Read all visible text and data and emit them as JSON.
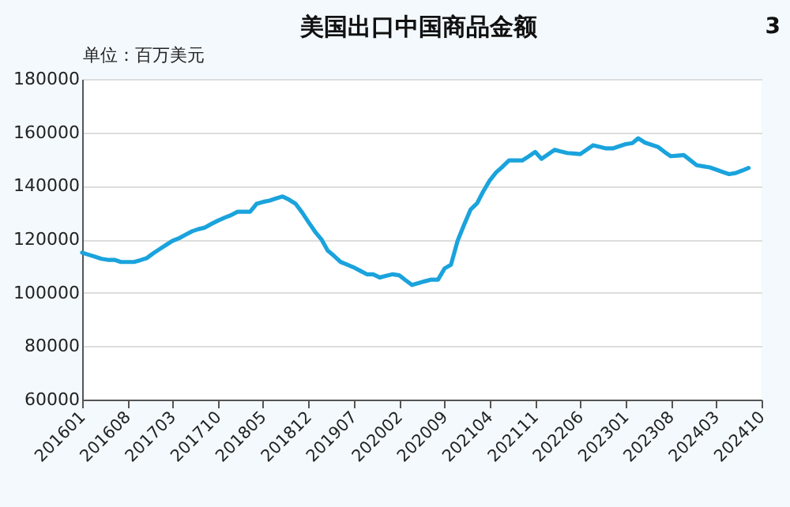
{
  "chart_data": {
    "type": "line",
    "title": "美国出口中国商品金额",
    "ylabel": "单位：百万美元",
    "annotations": [
      "3"
    ],
    "x": [
      "2016-01",
      "2016-02",
      "2016-03",
      "2016-04",
      "2016-05",
      "2016-06",
      "2016-07",
      "2016-08",
      "2016-09",
      "2016-10",
      "2016-11",
      "2016-12",
      "2017-01",
      "2017-02",
      "2017-03",
      "2017-04",
      "2017-05",
      "2017-06",
      "2017-07",
      "2017-08",
      "2017-09",
      "2017-10",
      "2017-11",
      "2017-12",
      "2018-01",
      "2018-02",
      "2018-03",
      "2018-04",
      "2018-05",
      "2018-06",
      "2018-07",
      "2018-08",
      "2018-09",
      "2018-10",
      "2018-11",
      "2018-12",
      "2019-01",
      "2019-02",
      "2019-03",
      "2019-04",
      "2019-05",
      "2019-06",
      "2019-07",
      "2019-08",
      "2019-09",
      "2019-10",
      "2019-11",
      "2019-12",
      "2020-01",
      "2020-02",
      "2020-03",
      "2020-04",
      "2020-05",
      "2020-06",
      "2020-07",
      "2020-08",
      "2020-09",
      "2020-10",
      "2020-11",
      "2020-12",
      "2021-01",
      "2021-02",
      "2021-03",
      "2021-04",
      "2021-05",
      "2021-06",
      "2021-07",
      "2021-08",
      "2021-09",
      "2021-10",
      "2021-11",
      "2021-12",
      "2022-01",
      "2022-02",
      "2022-03",
      "2022-04",
      "2022-05",
      "2022-06",
      "2022-07",
      "2022-08",
      "2022-09",
      "2022-10",
      "2022-11",
      "2022-12",
      "2023-01",
      "2023-02",
      "2023-03",
      "2023-04",
      "2023-05",
      "2023-06",
      "2023-07",
      "2023-08",
      "2023-09",
      "2023-10",
      "2023-11",
      "2023-12",
      "2024-01",
      "2024-02",
      "2024-03",
      "2024-04",
      "2024-05",
      "2024-06",
      "2024-07",
      "2024-08"
    ],
    "series": [
      {
        "color": "#1aa3dc",
        "values": [
          115000,
          114200,
          113500,
          112700,
          112300,
          112300,
          111500,
          111500,
          111500,
          112200,
          113000,
          114800,
          116400,
          118000,
          119400,
          120400,
          121700,
          123000,
          123800,
          124400,
          125800,
          127000,
          128100,
          129000,
          130300,
          130300,
          130300,
          133300,
          134000,
          134500,
          135300,
          136000,
          134800,
          133300,
          130000,
          126400,
          122800,
          119800,
          115800,
          113700,
          111500,
          110500,
          109500,
          108200,
          106900,
          106900,
          105700,
          106300,
          106900,
          106500,
          104700,
          102900,
          103600,
          104300,
          104900,
          104900,
          109100,
          110500,
          119400,
          125300,
          131100,
          133500,
          137800,
          142000,
          145000,
          147200,
          149500,
          149500,
          149500,
          151000,
          152700,
          150100,
          151800,
          153500,
          152900,
          152300,
          152100,
          151900,
          153500,
          155200,
          154600,
          154000,
          154000,
          154800,
          155600,
          156000,
          157800,
          156200,
          155400,
          154600,
          152800,
          151100,
          151300,
          151500,
          149600,
          147700,
          147300,
          146900,
          146100,
          145200,
          144400,
          144800,
          145700,
          146700
        ]
      }
    ],
    "xlim": [
      "2016-01",
      "2024-10"
    ],
    "xticks": [
      {
        "value": "2016-01",
        "label": "201601"
      },
      {
        "value": "2016-08",
        "label": "201608"
      },
      {
        "value": "2017-03",
        "label": "201703"
      },
      {
        "value": "2017-10",
        "label": "201710"
      },
      {
        "value": "2018-05",
        "label": "201805"
      },
      {
        "value": "2018-12",
        "label": "201812"
      },
      {
        "value": "2019-07",
        "label": "201907"
      },
      {
        "value": "2020-02",
        "label": "202002"
      },
      {
        "value": "2020-09",
        "label": "202009"
      },
      {
        "value": "2021-04",
        "label": "202104"
      },
      {
        "value": "2021-11",
        "label": "202111"
      },
      {
        "value": "2022-06",
        "label": "202206"
      },
      {
        "value": "2023-01",
        "label": "202301"
      },
      {
        "value": "2023-08",
        "label": "202308"
      },
      {
        "value": "2024-03",
        "label": "202403"
      },
      {
        "value": "2024-10",
        "label": "202410"
      }
    ],
    "ylim": [
      60000,
      180000
    ],
    "yticks": [
      60000,
      80000,
      100000,
      120000,
      140000,
      160000,
      180000
    ],
    "grid": "y",
    "marker": "none",
    "line_style": "solid"
  }
}
